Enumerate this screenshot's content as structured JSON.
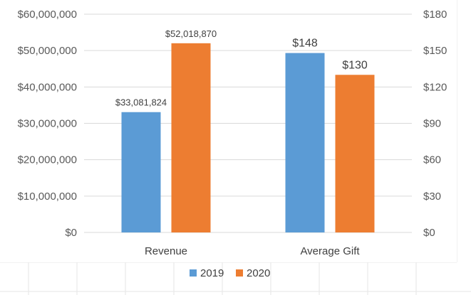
{
  "colors": {
    "series_2019": "#5b9bd5",
    "series_2020": "#ed7d31",
    "gridline": "#d9d9d9",
    "sheet_grid": "#e6e6e6"
  },
  "chart_data": {
    "type": "bar",
    "categories": [
      "Revenue",
      "Average Gift"
    ],
    "series": [
      {
        "name": "2019",
        "color": "#5b9bd5",
        "values": [
          33081824,
          148
        ],
        "labels": [
          "$33,081,824",
          "$148"
        ],
        "axis": [
          "left",
          "right"
        ]
      },
      {
        "name": "2020",
        "color": "#ed7d31",
        "values": [
          52018870,
          130
        ],
        "labels": [
          "$52,018,870",
          "$130"
        ],
        "axis": [
          "left",
          "right"
        ]
      }
    ],
    "left_axis": {
      "min": 0,
      "max": 60000000,
      "step": 10000000,
      "tick_labels": [
        "$0",
        "$10,000,000",
        "$20,000,000",
        "$30,000,000",
        "$40,000,000",
        "$50,000,000",
        "$60,000,000"
      ]
    },
    "right_axis": {
      "min": 0,
      "max": 180,
      "step": 30,
      "tick_labels": [
        "$0",
        "$30",
        "$60",
        "$90",
        "$120",
        "$150",
        "$180"
      ]
    },
    "grid": true,
    "legend_position": "bottom"
  }
}
